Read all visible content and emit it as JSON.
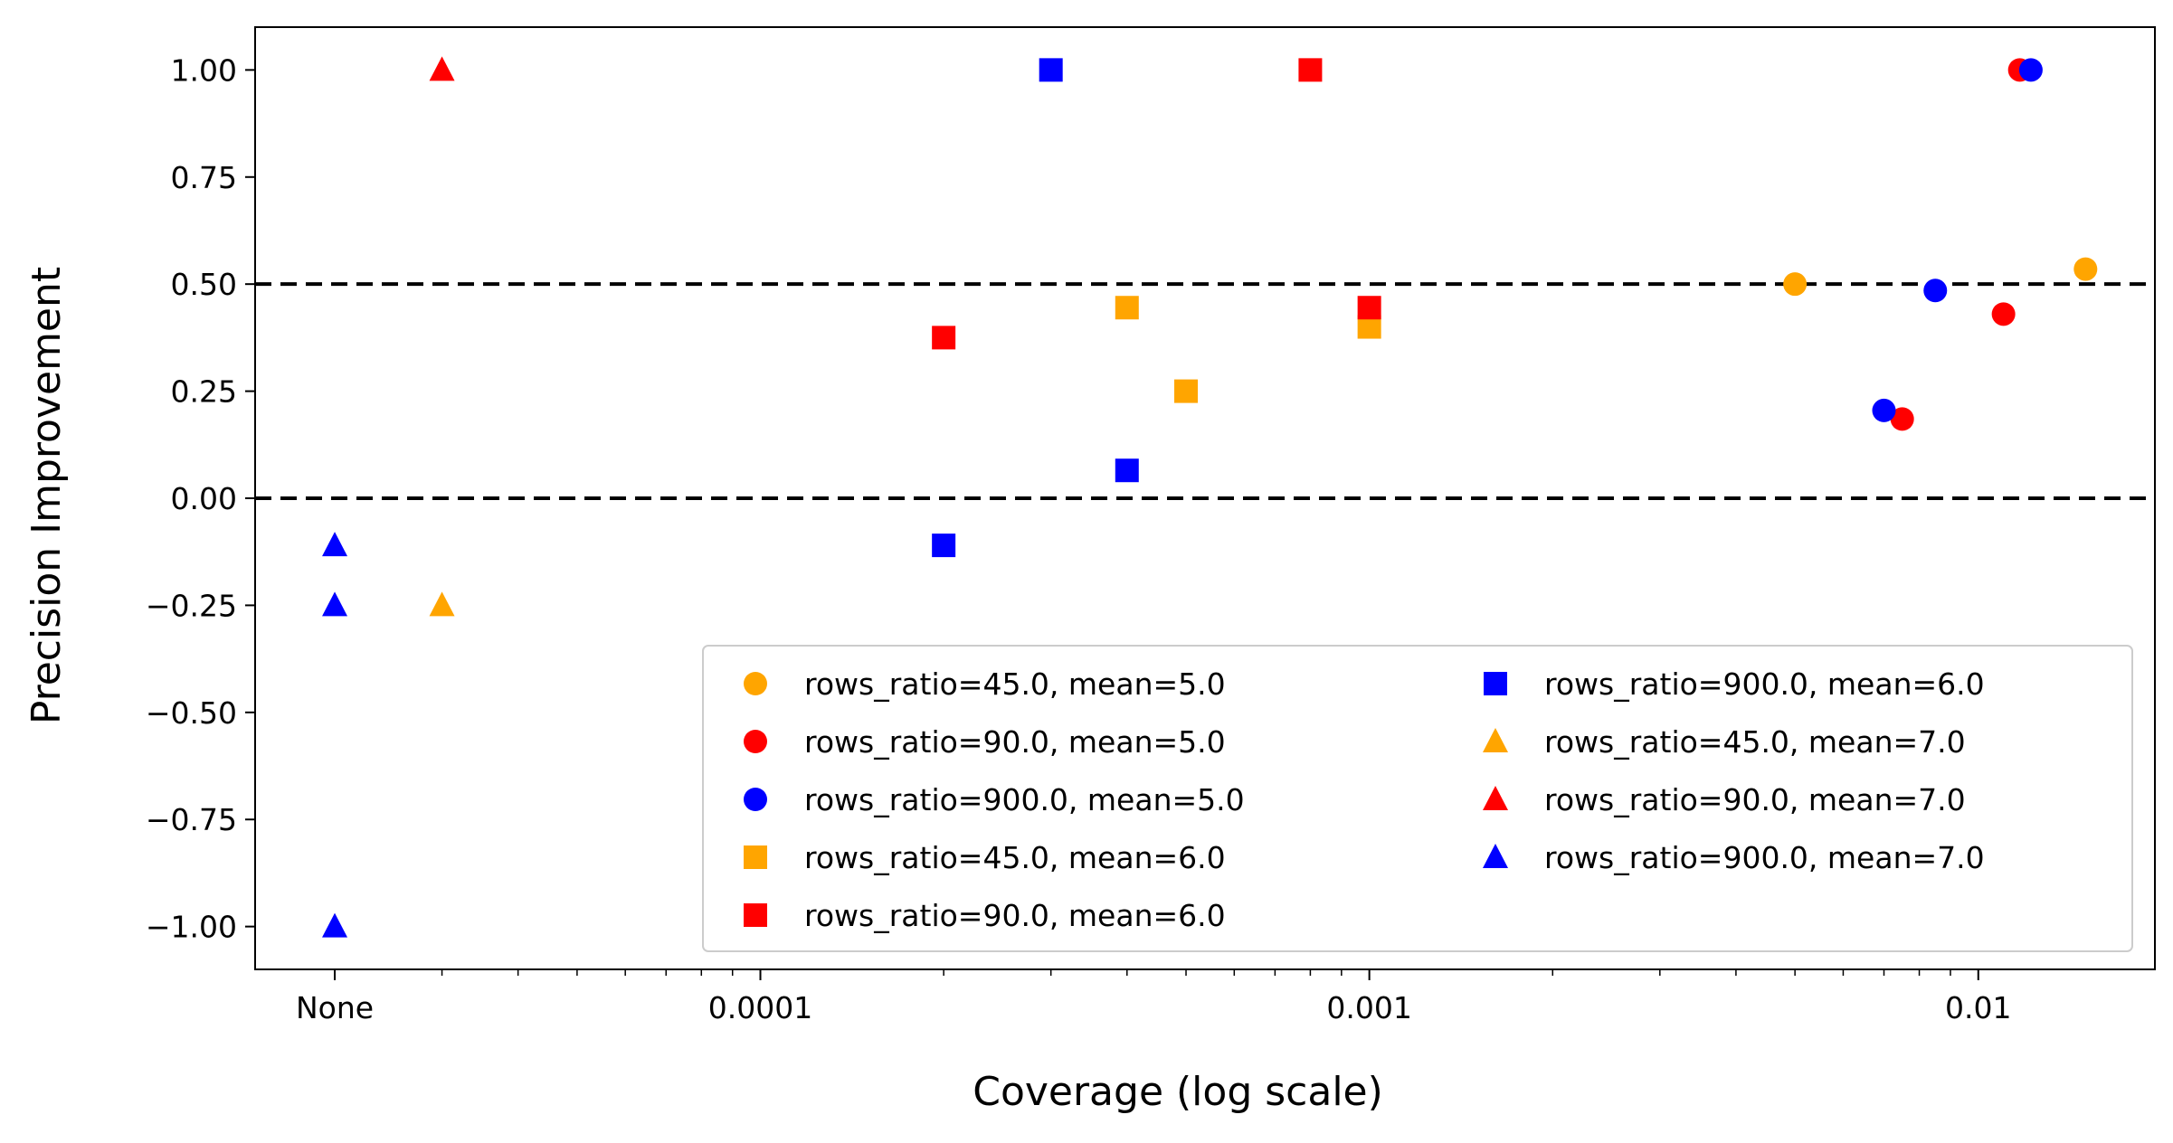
{
  "chart_data": {
    "type": "scatter",
    "title": "",
    "xlabel": "Coverage (log scale)",
    "ylabel": "Precision Improvement",
    "x_scale": "log",
    "xlim": [
      1.48e-05,
      0.0195
    ],
    "ylim": [
      -1.1,
      1.1
    ],
    "x_ticks": [
      {
        "value": 2e-05,
        "label": "None"
      },
      {
        "value": 0.0001,
        "label": "0.0001"
      },
      {
        "value": 0.001,
        "label": "0.001"
      },
      {
        "value": 0.01,
        "label": "0.01"
      }
    ],
    "y_ticks": [
      {
        "value": 1.0,
        "label": "1.00"
      },
      {
        "value": 0.75,
        "label": "0.75"
      },
      {
        "value": 0.5,
        "label": "0.50"
      },
      {
        "value": 0.25,
        "label": "0.25"
      },
      {
        "value": 0.0,
        "label": "0.00"
      },
      {
        "value": -0.25,
        "label": "−0.25"
      },
      {
        "value": -0.5,
        "label": "−0.50"
      },
      {
        "value": -0.75,
        "label": "−0.75"
      },
      {
        "value": -1.0,
        "label": "−1.00"
      }
    ],
    "reference_lines": [
      {
        "y": 0.5,
        "style": "dashed",
        "color": "#000000"
      },
      {
        "y": 0.0,
        "style": "dashed",
        "color": "#000000"
      }
    ],
    "grid": false,
    "legend_position": "lower-right",
    "legend_columns": 2,
    "series": [
      {
        "name": "rows_ratio=45.0, mean=5.0",
        "marker": "circle",
        "color": "#FFA500",
        "points": [
          {
            "x": 0.005,
            "y": 0.5
          },
          {
            "x": 0.015,
            "y": 0.535
          }
        ]
      },
      {
        "name": "rows_ratio=90.0, mean=5.0",
        "marker": "circle",
        "color": "#FF0000",
        "points": [
          {
            "x": 0.0075,
            "y": 0.185
          },
          {
            "x": 0.011,
            "y": 0.43
          },
          {
            "x": 0.0117,
            "y": 1.0
          }
        ]
      },
      {
        "name": "rows_ratio=900.0, mean=5.0",
        "marker": "circle",
        "color": "#0000FF",
        "points": [
          {
            "x": 0.007,
            "y": 0.205
          },
          {
            "x": 0.0085,
            "y": 0.485
          },
          {
            "x": 0.0122,
            "y": 1.0
          }
        ]
      },
      {
        "name": "rows_ratio=45.0, mean=6.0",
        "marker": "square",
        "color": "#FFA500",
        "points": [
          {
            "x": 0.0004,
            "y": 0.445
          },
          {
            "x": 0.0005,
            "y": 0.25
          },
          {
            "x": 0.001,
            "y": 0.4
          }
        ]
      },
      {
        "name": "rows_ratio=90.0, mean=6.0",
        "marker": "square",
        "color": "#FF0000",
        "points": [
          {
            "x": 0.0002,
            "y": 0.375
          },
          {
            "x": 0.0008,
            "y": 1.0
          },
          {
            "x": 0.001,
            "y": 0.445
          }
        ]
      },
      {
        "name": "rows_ratio=900.0, mean=6.0",
        "marker": "square",
        "color": "#0000FF",
        "points": [
          {
            "x": 0.0002,
            "y": -0.11
          },
          {
            "x": 0.0003,
            "y": 1.0
          },
          {
            "x": 0.0004,
            "y": 0.065
          }
        ]
      },
      {
        "name": "rows_ratio=45.0, mean=7.0",
        "marker": "triangle",
        "color": "#FFA500",
        "points": [
          {
            "x": 3e-05,
            "y": -0.25
          }
        ]
      },
      {
        "name": "rows_ratio=90.0, mean=7.0",
        "marker": "triangle",
        "color": "#FF0000",
        "points": [
          {
            "x": 3e-05,
            "y": 1.0
          }
        ]
      },
      {
        "name": "rows_ratio=900.0, mean=7.0",
        "marker": "triangle",
        "color": "#0000FF",
        "points": [
          {
            "x": 2e-05,
            "y": -0.11
          },
          {
            "x": 2e-05,
            "y": -0.25
          },
          {
            "x": 2e-05,
            "y": -1.0
          }
        ]
      }
    ]
  }
}
